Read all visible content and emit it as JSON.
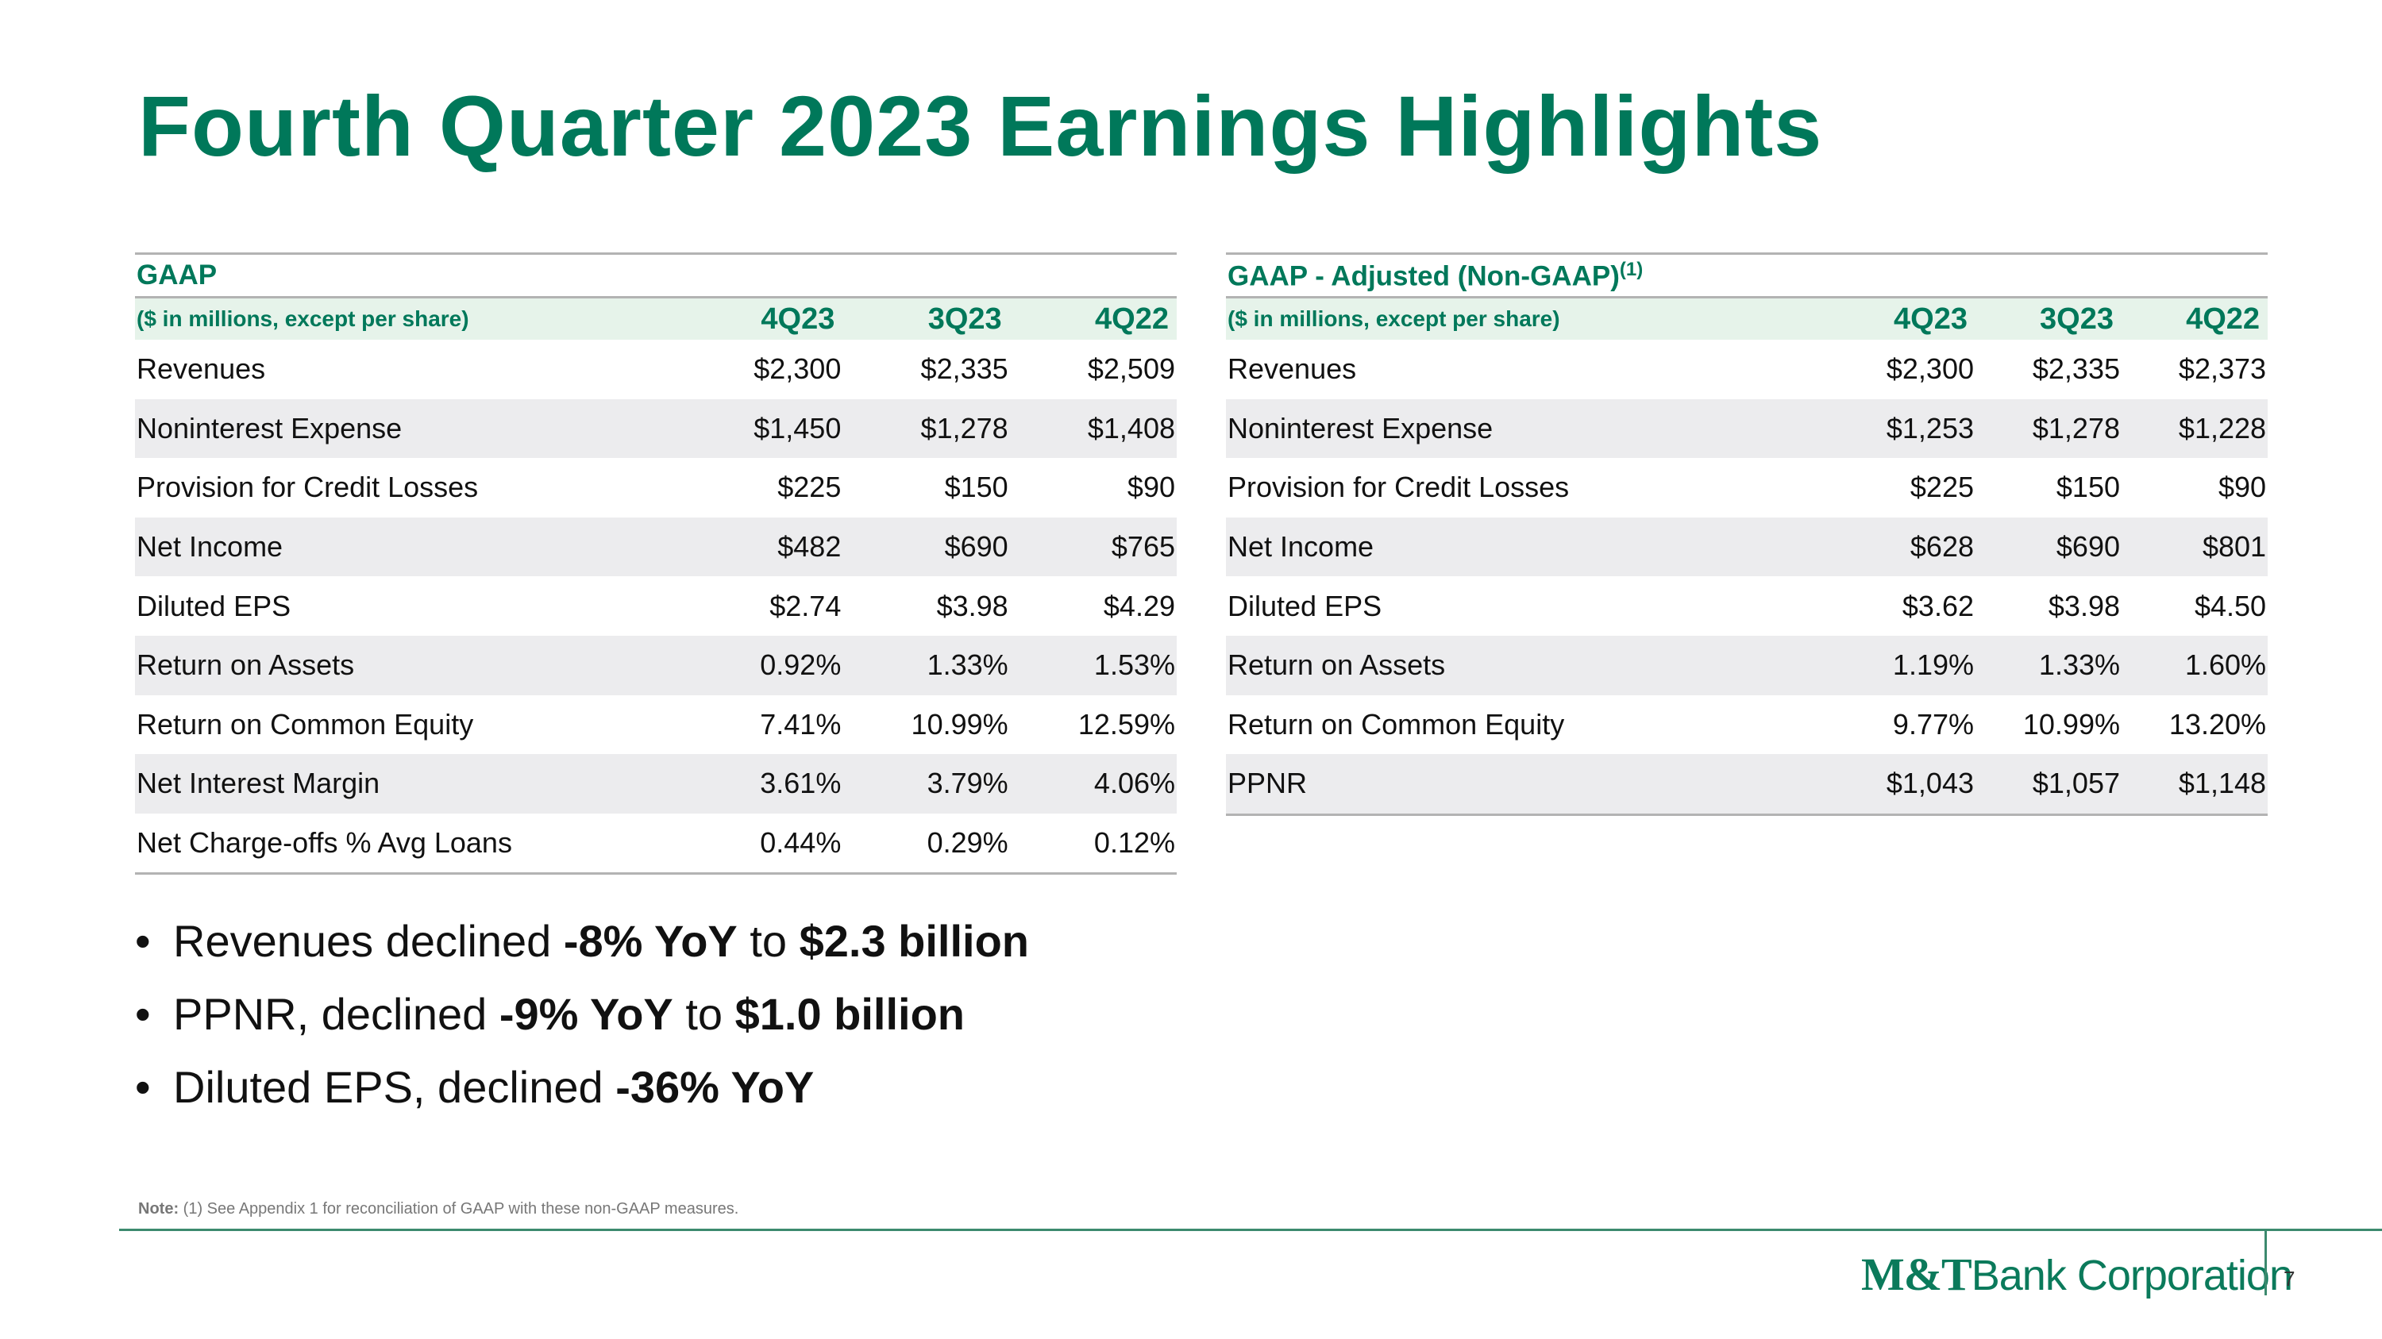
{
  "slide": {
    "title": "Fourth Quarter 2023 Earnings Highlights",
    "page_number": "7"
  },
  "gaap": {
    "section": "GAAP",
    "units": "($ in millions, except per share)",
    "columns": [
      "4Q23",
      "3Q23",
      "4Q22"
    ],
    "rows": [
      {
        "label": "Revenues",
        "values": [
          "$2,300",
          "$2,335",
          "$2,509"
        ]
      },
      {
        "label": "Noninterest Expense",
        "values": [
          "$1,450",
          "$1,278",
          "$1,408"
        ]
      },
      {
        "label": "Provision for Credit Losses",
        "values": [
          "$225",
          "$150",
          "$90"
        ]
      },
      {
        "label": "Net Income",
        "values": [
          "$482",
          "$690",
          "$765"
        ]
      },
      {
        "label": "Diluted EPS",
        "values": [
          "$2.74",
          "$3.98",
          "$4.29"
        ]
      },
      {
        "label": "Return on Assets",
        "values": [
          "0.92%",
          "1.33%",
          "1.53%"
        ]
      },
      {
        "label": "Return on Common Equity",
        "values": [
          "7.41%",
          "10.99%",
          "12.59%"
        ]
      },
      {
        "label": "Net Interest Margin",
        "values": [
          "3.61%",
          "3.79%",
          "4.06%"
        ]
      },
      {
        "label": "Net Charge-offs % Avg Loans",
        "values": [
          "0.44%",
          "0.29%",
          "0.12%"
        ]
      }
    ]
  },
  "adjusted": {
    "section": "GAAP - Adjusted (Non-GAAP)",
    "footnote_ref": "(1)",
    "units": "($ in millions, except per share)",
    "columns": [
      "4Q23",
      "3Q23",
      "4Q22"
    ],
    "rows": [
      {
        "label": "Revenues",
        "values": [
          "$2,300",
          "$2,335",
          "$2,373"
        ]
      },
      {
        "label": "Noninterest Expense",
        "values": [
          "$1,253",
          "$1,278",
          "$1,228"
        ]
      },
      {
        "label": "Provision for Credit Losses",
        "values": [
          "$225",
          "$150",
          "$90"
        ]
      },
      {
        "label": "Net Income",
        "values": [
          "$628",
          "$690",
          "$801"
        ]
      },
      {
        "label": "Diluted EPS",
        "values": [
          "$3.62",
          "$3.98",
          "$4.50"
        ]
      },
      {
        "label": "Return on Assets",
        "values": [
          "1.19%",
          "1.33%",
          "1.60%"
        ]
      },
      {
        "label": "Return on Common Equity",
        "values": [
          "9.77%",
          "10.99%",
          "13.20%"
        ]
      },
      {
        "label": "PPNR",
        "values": [
          "$1,043",
          "$1,057",
          "$1,148"
        ]
      }
    ]
  },
  "bullets": [
    {
      "bullet": "•",
      "parts": [
        "Revenues declined ",
        "-8% YoY",
        " to ",
        "$2.3 billion"
      ]
    },
    {
      "bullet": "•",
      "parts": [
        "PPNR, declined ",
        "-9% YoY",
        " to ",
        "$1.0 billion"
      ]
    },
    {
      "bullet": "•",
      "parts": [
        "Diluted EPS, declined ",
        "-36% YoY"
      ]
    }
  ],
  "note": {
    "label": "Note:",
    "text": " (1) See Appendix 1 for reconciliation of GAAP with these non-GAAP measures."
  },
  "logo": {
    "mark": "M&T",
    "rest": "Bank Corporation"
  },
  "colors": {
    "brand_green": "#00785a",
    "header_fill": "#e6f3ea",
    "stripe_fill": "#ececee"
  }
}
